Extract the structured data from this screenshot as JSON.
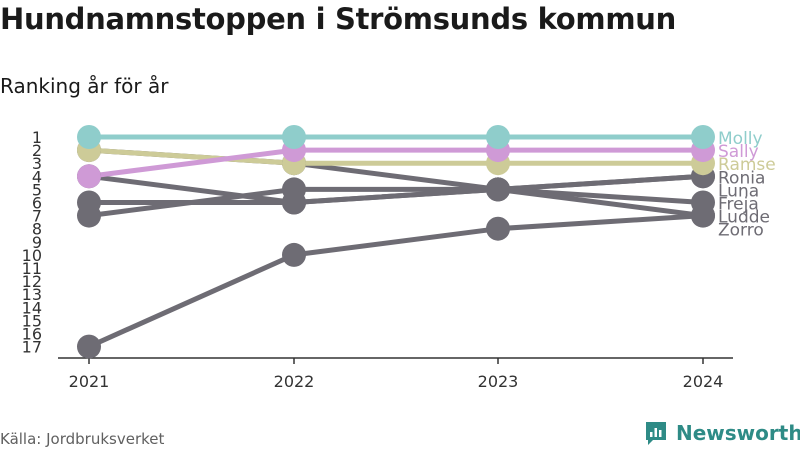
{
  "title": "Hundnamnstoppen i Strömsunds kommun",
  "subtitle": "Ranking år för år",
  "source": "Källa: Jordbruksverket",
  "brand": "Newsworthy",
  "colors": {
    "gray": "#6e6c74",
    "molly": "#8fcdcb",
    "sally": "#cf9ad6",
    "ramse": "#cdcb98",
    "axis": "#333333",
    "brand": "#2e8b86"
  },
  "chart_data": {
    "type": "line",
    "title": "Hundnamnstoppen i Strömsunds kommun",
    "subtitle": "Ranking år för år",
    "x": [
      "2021",
      "2022",
      "2023",
      "2024"
    ],
    "y_ticks": [
      1,
      2,
      3,
      4,
      5,
      6,
      7,
      8,
      9,
      10,
      11,
      12,
      13,
      14,
      15,
      16,
      17
    ],
    "ylim": [
      1,
      17
    ],
    "y_inverted": true,
    "series": [
      {
        "name": "Zorro",
        "values": [
          17,
          10,
          8,
          7
        ],
        "color": "gray"
      },
      {
        "name": "Ludde",
        "values": [
          2,
          3,
          5,
          7
        ],
        "color": "gray"
      },
      {
        "name": "Freja",
        "values": [
          4,
          6,
          5,
          6
        ],
        "color": "gray"
      },
      {
        "name": "Luna",
        "values": [
          7,
          5,
          5,
          4
        ],
        "color": "gray"
      },
      {
        "name": "Ronia",
        "values": [
          6,
          6,
          5,
          4
        ],
        "color": "gray"
      },
      {
        "name": "Ramse",
        "values": [
          2,
          3,
          3,
          3
        ],
        "color": "ramse"
      },
      {
        "name": "Sally",
        "values": [
          4,
          2,
          2,
          2
        ],
        "color": "sally"
      },
      {
        "name": "Molly",
        "values": [
          1,
          1,
          1,
          1
        ],
        "color": "molly"
      }
    ],
    "grid": false
  }
}
